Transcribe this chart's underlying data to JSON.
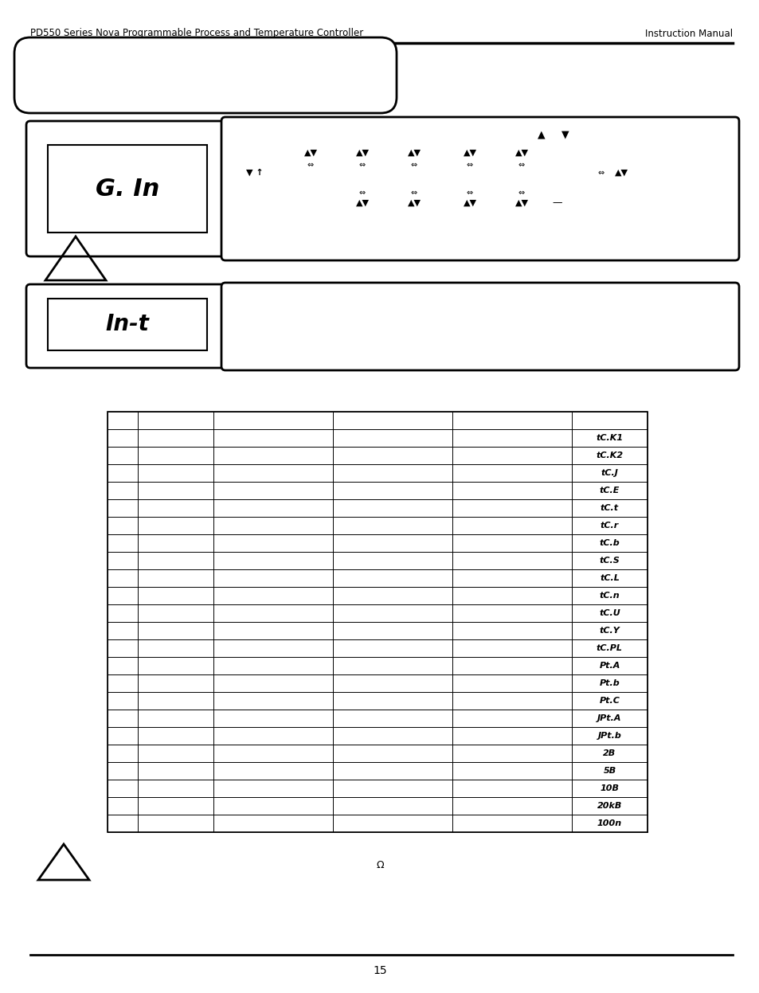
{
  "header_left": "PD550 Series Nova Programmable Process and Temperature Controller",
  "header_right": "Instruction Manual",
  "display1_text": "G. In",
  "display2_text": "In-t",
  "table_rows": [
    "tC.K1",
    "tC.K2",
    "tC.J",
    "tC.E",
    "tC.t",
    "tC.r",
    "tC.b",
    "tC.S",
    "tC.L",
    "tC.n",
    "tC.U",
    "tC.Y",
    "tC.PL",
    "Pt.A",
    "Pt.b",
    "Pt.C",
    "JPt.A",
    "JPt.b",
    "2B",
    "5B",
    "10B",
    "20kB",
    "100n"
  ],
  "footer_note": "Ω",
  "page_number": "15",
  "bg_color": "#ffffff",
  "border_color": "#000000",
  "text_color": "#000000"
}
